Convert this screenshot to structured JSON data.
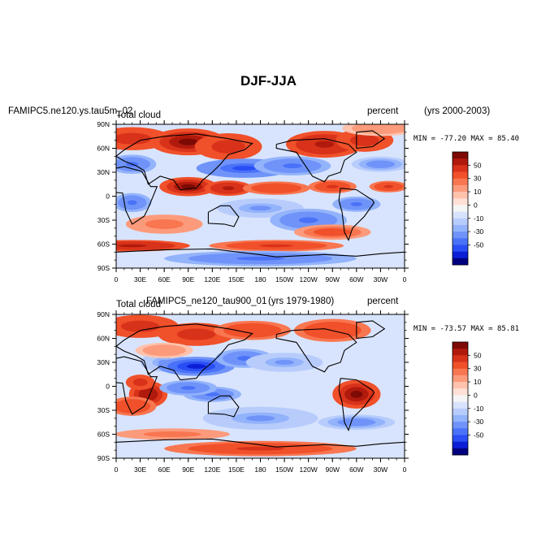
{
  "figure_title": "DJF-JJA",
  "chart_data": [
    {
      "type": "heatmap",
      "case_label": "FAMIPC5.ne120.ys.tau5m_02",
      "variable": "Total cloud",
      "units": "percent",
      "years": "(yrs 2000-2003)",
      "stats": "MIN = -77.20  MAX =  85.40",
      "min": -77.2,
      "max": 85.4,
      "x_ticks": [
        "0",
        "30E",
        "60E",
        "90E",
        "120E",
        "150E",
        "180",
        "150W",
        "120W",
        "90W",
        "60W",
        "30W",
        "0"
      ],
      "y_ticks": [
        "90N",
        "60N",
        "30N",
        "0",
        "30S",
        "60S",
        "90S"
      ],
      "xlim": [
        0,
        360
      ],
      "ylim": [
        -90,
        90
      ]
    },
    {
      "type": "heatmap",
      "case_label": "FAMIPC5_ne120_tau900_01",
      "variable": "Total cloud",
      "units": "percent",
      "years": "(yrs 1979-1980)",
      "stats": "MIN = -73.57  MAX =  85.81",
      "min": -73.57,
      "max": 85.81,
      "x_ticks": [
        "0",
        "30E",
        "60E",
        "90E",
        "120E",
        "150E",
        "180",
        "150W",
        "120W",
        "90W",
        "60W",
        "30W",
        "0"
      ],
      "y_ticks": [
        "90N",
        "60N",
        "30N",
        "0",
        "30S",
        "60S",
        "90S"
      ],
      "xlim": [
        0,
        360
      ],
      "ylim": [
        -90,
        90
      ]
    }
  ],
  "colorbar": {
    "labels": [
      "50",
      "30",
      "10",
      "0",
      "-10",
      "-30",
      "-50"
    ],
    "levels": [
      -60,
      -50,
      -40,
      -30,
      -20,
      -15,
      -10,
      -5,
      0,
      5,
      10,
      15,
      20,
      30,
      40,
      50,
      60
    ],
    "colors": [
      "#000080",
      "#0a1fd6",
      "#2a4ef5",
      "#4a72f8",
      "#6f93f9",
      "#93b3fb",
      "#b8ccfc",
      "#d8e4fd",
      "#f5f5f5",
      "#ffe0d6",
      "#ffc2ad",
      "#fc9b7c",
      "#f87650",
      "#f0502a",
      "#d8321a",
      "#b01a0c",
      "#7d0a05"
    ]
  }
}
